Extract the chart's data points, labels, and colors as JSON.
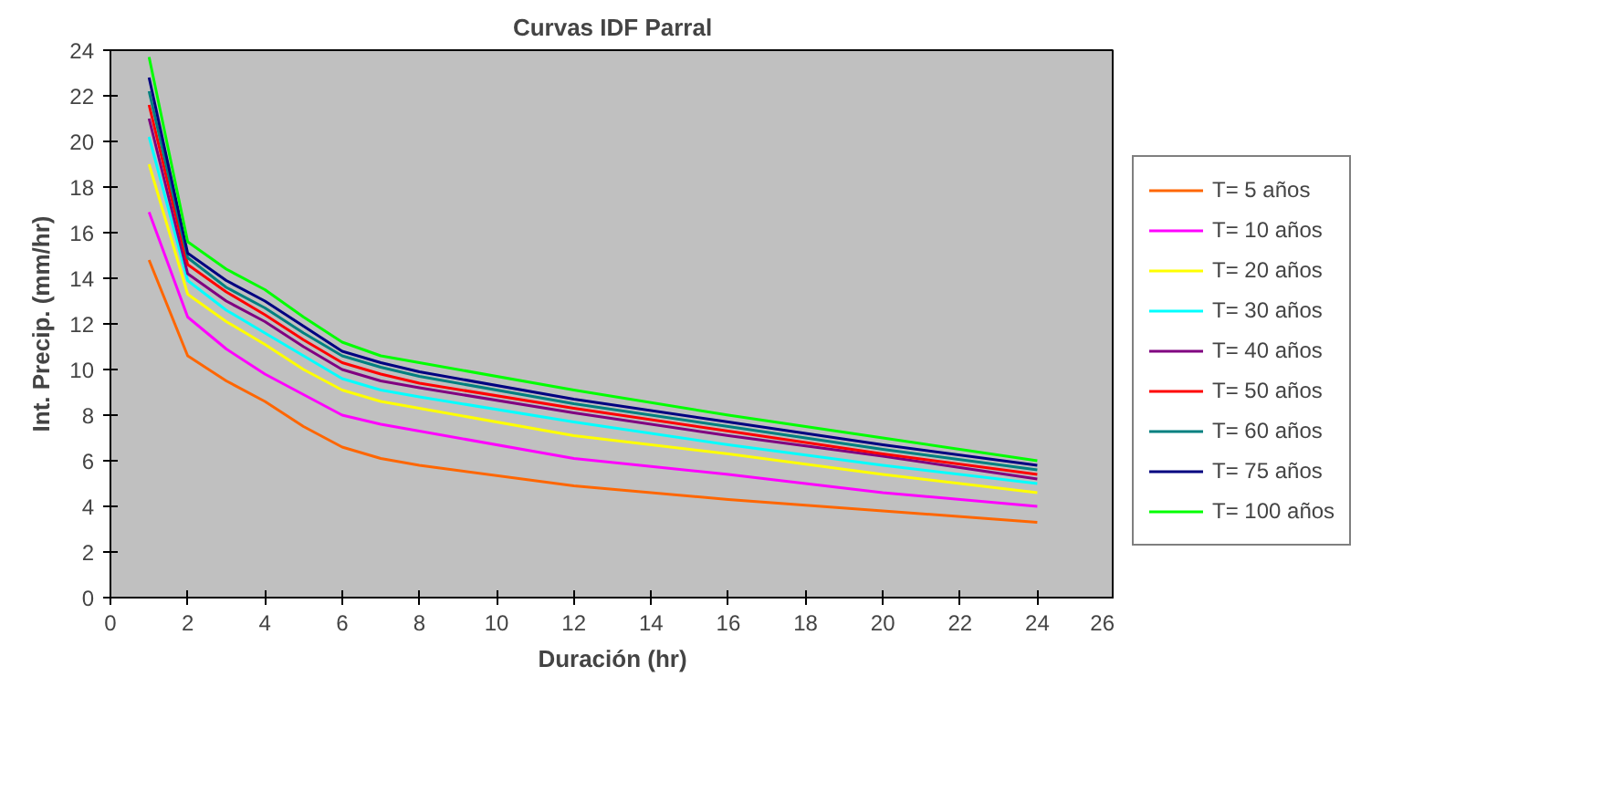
{
  "chart_data": {
    "type": "line",
    "title": "Curvas IDF Parral",
    "xlabel": "Duración (hr)",
    "ylabel": "Int. Precip. (mm/hr)",
    "x": [
      1,
      2,
      3,
      4,
      5,
      6,
      7,
      8,
      12,
      16,
      20,
      24
    ],
    "xlim": [
      0,
      26
    ],
    "xticks": [
      0,
      2,
      4,
      6,
      8,
      10,
      12,
      14,
      16,
      18,
      20,
      22,
      24,
      26
    ],
    "ylim": [
      0,
      24
    ],
    "yticks": [
      0,
      2,
      4,
      6,
      8,
      10,
      12,
      14,
      16,
      18,
      20,
      22,
      24
    ],
    "grid": false,
    "legend": "right",
    "marker": "none",
    "line_style": "solid",
    "series": [
      {
        "name": "T= 5 años",
        "color": "#ff6600",
        "values": [
          14.8,
          10.6,
          9.5,
          8.6,
          7.5,
          6.6,
          6.1,
          5.8,
          4.9,
          4.3,
          3.8,
          3.3
        ]
      },
      {
        "name": "T= 10 años",
        "color": "#ff00ff",
        "values": [
          16.9,
          12.3,
          10.9,
          9.8,
          8.9,
          8.0,
          7.6,
          7.3,
          6.1,
          5.4,
          4.6,
          4.0
        ]
      },
      {
        "name": "T= 20 años",
        "color": "#ffff00",
        "values": [
          19.0,
          13.3,
          12.1,
          11.1,
          10.0,
          9.1,
          8.6,
          8.3,
          7.1,
          6.3,
          5.4,
          4.6
        ]
      },
      {
        "name": "T= 30 años",
        "color": "#00ffff",
        "values": [
          20.2,
          13.9,
          12.6,
          11.6,
          10.6,
          9.6,
          9.1,
          8.8,
          7.7,
          6.7,
          5.8,
          5.0
        ]
      },
      {
        "name": "T= 40 años",
        "color": "#800080",
        "values": [
          21.0,
          14.2,
          13.0,
          12.1,
          11.0,
          10.0,
          9.5,
          9.2,
          8.1,
          7.1,
          6.2,
          5.2
        ]
      },
      {
        "name": "T= 50 años",
        "color": "#ff0000",
        "values": [
          21.6,
          14.6,
          13.4,
          12.4,
          11.3,
          10.3,
          9.8,
          9.4,
          8.3,
          7.3,
          6.3,
          5.4
        ]
      },
      {
        "name": "T= 60 años",
        "color": "#008080",
        "values": [
          22.2,
          14.9,
          13.6,
          12.7,
          11.6,
          10.6,
          10.1,
          9.7,
          8.5,
          7.5,
          6.5,
          5.6
        ]
      },
      {
        "name": "T= 75 años",
        "color": "#000080",
        "values": [
          22.8,
          15.1,
          13.9,
          13.0,
          11.9,
          10.8,
          10.3,
          9.9,
          8.7,
          7.7,
          6.7,
          5.8
        ]
      },
      {
        "name": "T= 100 años",
        "color": "#00ff00",
        "values": [
          23.7,
          15.6,
          14.4,
          13.5,
          12.3,
          11.2,
          10.6,
          10.3,
          9.1,
          8.0,
          7.0,
          6.0
        ]
      }
    ]
  }
}
